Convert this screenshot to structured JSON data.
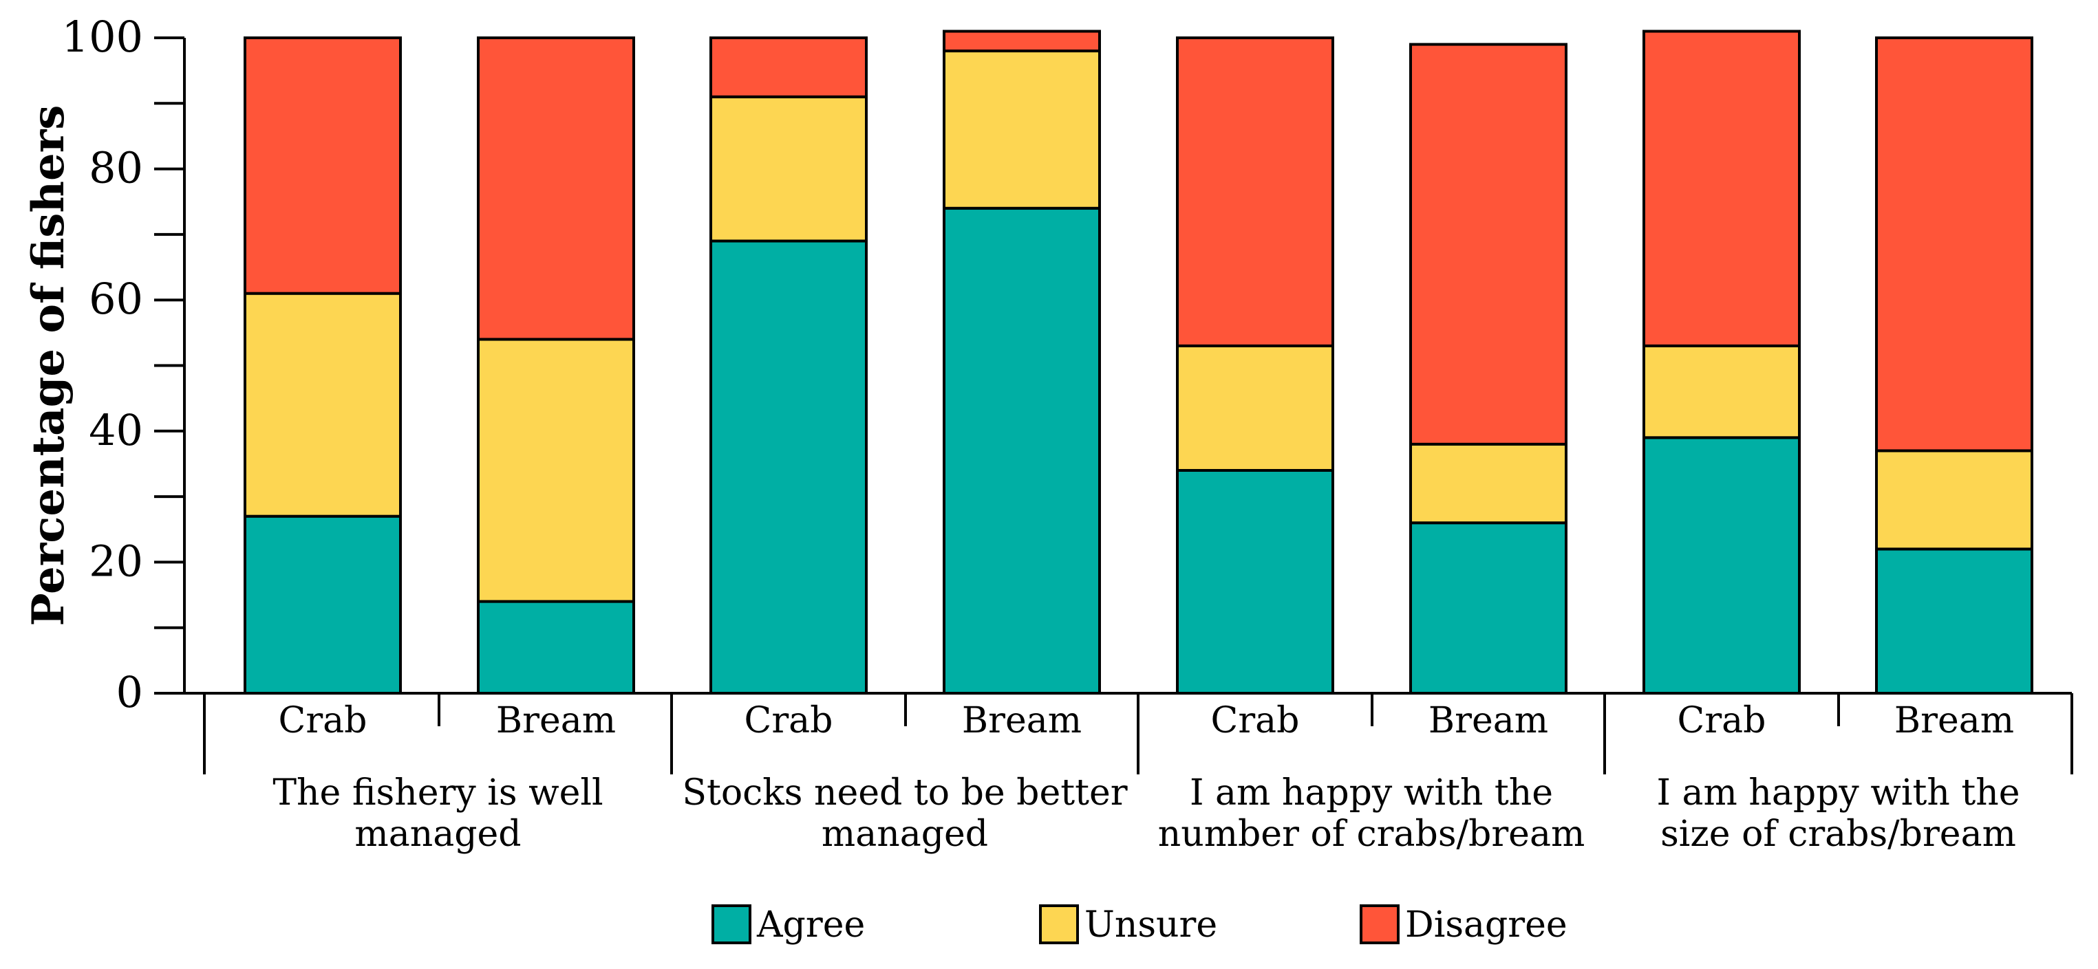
{
  "chart_data": {
    "type": "bar",
    "stacked": true,
    "title": "",
    "xlabel": "",
    "ylabel": "Percentage of fishers",
    "ylim": [
      0,
      100
    ],
    "y_ticks": [
      "0",
      "20",
      "40",
      "60",
      "80",
      "100"
    ],
    "categories": [
      "The fishery is well managed",
      "Stocks need to be better managed",
      "I am happy with the number of crabs/bream",
      "I am happy with the size of crabs/bream"
    ],
    "groups": [
      {
        "label_lines": [
          "The fishery is well",
          "managed"
        ],
        "bars": [
          {
            "label": "Crab",
            "values": [
              27,
              34,
              39
            ]
          },
          {
            "label": "Bream",
            "values": [
              14,
              40,
              46
            ]
          }
        ]
      },
      {
        "label_lines": [
          "Stocks need to be better",
          "managed"
        ],
        "bars": [
          {
            "label": "Crab",
            "values": [
              69,
              22,
              9
            ]
          },
          {
            "label": "Bream",
            "values": [
              74,
              24,
              3
            ]
          }
        ]
      },
      {
        "label_lines": [
          "I am happy with the",
          "number of crabs/bream"
        ],
        "bars": [
          {
            "label": "Crab",
            "values": [
              34,
              19,
              47
            ]
          },
          {
            "label": "Bream",
            "values": [
              26,
              12,
              61
            ]
          }
        ]
      },
      {
        "label_lines": [
          "I am happy with the",
          "size of crabs/bream"
        ],
        "bars": [
          {
            "label": "Crab",
            "values": [
              39,
              14,
              48
            ]
          },
          {
            "label": "Bream",
            "values": [
              22,
              15,
              63
            ]
          }
        ]
      }
    ],
    "series": [
      {
        "name": "Agree",
        "color": "#00AFA4"
      },
      {
        "name": "Unsure",
        "color": "#FDD652"
      },
      {
        "name": "Disagree",
        "color": "#FF5539"
      }
    ],
    "legend_position": "bottom-center",
    "grid": false
  }
}
